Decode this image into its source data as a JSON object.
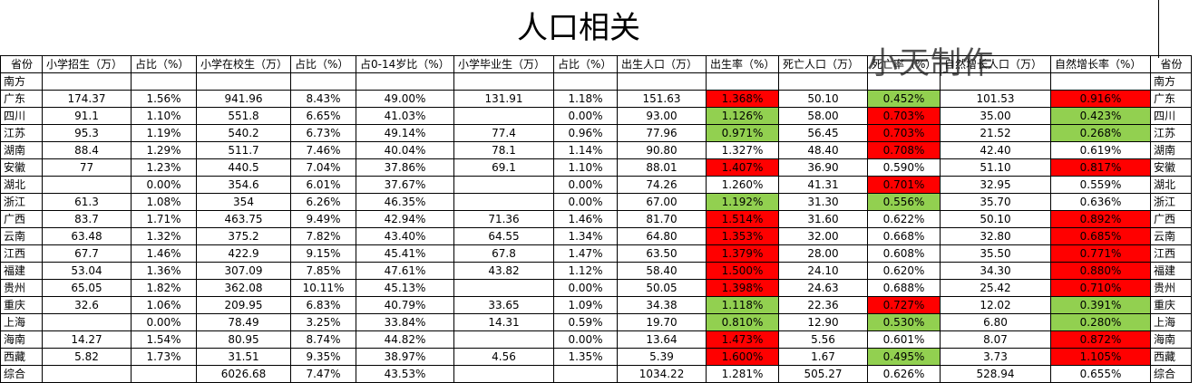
{
  "title": "人口相关",
  "watermark": "小天制作",
  "headers": [
    "省份",
    "小学招生（万）",
    "占比（%）",
    "小学在校生（万）",
    "占比（%）",
    "占0-14岁比（%）",
    "小学毕业生（万）",
    "占比（%）",
    "出生人口（万）",
    "出生率（%）",
    "死亡人口（万）",
    "死亡率（%）",
    "自然增长人口（万）",
    "自然增长率（%）",
    "省份"
  ],
  "rows": [
    {
      "cells": [
        "南方",
        "",
        "",
        "",
        "",
        "",
        "",
        "",
        "",
        "",
        "",
        "",
        "",
        "",
        "南方"
      ],
      "hl": [
        null,
        null
      ]
    },
    {
      "cells": [
        "广东",
        "174.37",
        "1.56%",
        "941.96",
        "8.43%",
        "49.00%",
        "131.91",
        "1.18%",
        "151.63",
        "1.368%",
        "50.10",
        "0.452%",
        "101.53",
        "0.916%",
        "广东"
      ],
      "hl": [
        "red",
        "green",
        "red"
      ]
    },
    {
      "cells": [
        "四川",
        "91.1",
        "1.10%",
        "551.8",
        "6.65%",
        "41.03%",
        "",
        "0.00%",
        "93.00",
        "1.126%",
        "58.00",
        "0.703%",
        "35.00",
        "0.423%",
        "四川"
      ],
      "hl": [
        "green",
        "red",
        "green"
      ]
    },
    {
      "cells": [
        "江苏",
        "95.3",
        "1.19%",
        "540.2",
        "6.73%",
        "49.14%",
        "77.4",
        "0.96%",
        "77.96",
        "0.971%",
        "56.45",
        "0.703%",
        "21.52",
        "0.268%",
        "江苏"
      ],
      "hl": [
        "green",
        "red",
        "green"
      ]
    },
    {
      "cells": [
        "湖南",
        "88.4",
        "1.29%",
        "511.7",
        "7.46%",
        "40.04%",
        "78.1",
        "1.14%",
        "90.80",
        "1.327%",
        "48.40",
        "0.708%",
        "42.40",
        "0.619%",
        "湖南"
      ],
      "hl": [
        null,
        "red",
        null
      ]
    },
    {
      "cells": [
        "安徽",
        "77",
        "1.23%",
        "440.5",
        "7.04%",
        "37.86%",
        "69.1",
        "1.10%",
        "88.01",
        "1.407%",
        "36.90",
        "0.590%",
        "51.10",
        "0.817%",
        "安徽"
      ],
      "hl": [
        "red",
        null,
        "red"
      ]
    },
    {
      "cells": [
        "湖北",
        "",
        "0.00%",
        "354.6",
        "6.01%",
        "37.67%",
        "",
        "0.00%",
        "74.26",
        "1.260%",
        "41.31",
        "0.701%",
        "32.95",
        "0.559%",
        "湖北"
      ],
      "hl": [
        null,
        "red",
        null
      ]
    },
    {
      "cells": [
        "浙江",
        "61.3",
        "1.08%",
        "354",
        "6.26%",
        "46.35%",
        "",
        "0.00%",
        "67.00",
        "1.192%",
        "31.30",
        "0.556%",
        "35.70",
        "0.636%",
        "浙江"
      ],
      "hl": [
        "green",
        "green",
        null
      ]
    },
    {
      "cells": [
        "广西",
        "83.7",
        "1.71%",
        "463.75",
        "9.49%",
        "42.94%",
        "71.36",
        "1.46%",
        "81.70",
        "1.514%",
        "31.60",
        "0.622%",
        "50.10",
        "0.892%",
        "广西"
      ],
      "hl": [
        "red",
        null,
        "red"
      ]
    },
    {
      "cells": [
        "云南",
        "63.48",
        "1.32%",
        "375.2",
        "7.82%",
        "43.40%",
        "64.55",
        "1.34%",
        "64.80",
        "1.353%",
        "32.00",
        "0.668%",
        "32.80",
        "0.685%",
        "云南"
      ],
      "hl": [
        "red",
        null,
        "red"
      ]
    },
    {
      "cells": [
        "江西",
        "67.7",
        "1.46%",
        "422.9",
        "9.15%",
        "45.41%",
        "67.8",
        "1.47%",
        "63.50",
        "1.379%",
        "28.00",
        "0.608%",
        "35.50",
        "0.771%",
        "江西"
      ],
      "hl": [
        "red",
        null,
        "red"
      ]
    },
    {
      "cells": [
        "福建",
        "53.04",
        "1.36%",
        "307.09",
        "7.85%",
        "47.61%",
        "43.82",
        "1.12%",
        "58.40",
        "1.500%",
        "24.10",
        "0.620%",
        "34.30",
        "0.880%",
        "福建"
      ],
      "hl": [
        "red",
        null,
        "red"
      ]
    },
    {
      "cells": [
        "贵州",
        "65.05",
        "1.82%",
        "362.08",
        "10.11%",
        "45.13%",
        "",
        "0.00%",
        "50.05",
        "1.398%",
        "24.63",
        "0.688%",
        "25.42",
        "0.710%",
        "贵州"
      ],
      "hl": [
        "red",
        null,
        "red"
      ]
    },
    {
      "cells": [
        "重庆",
        "32.6",
        "1.06%",
        "209.95",
        "6.83%",
        "40.79%",
        "33.65",
        "1.09%",
        "34.38",
        "1.118%",
        "22.36",
        "0.727%",
        "12.02",
        "0.391%",
        "重庆"
      ],
      "hl": [
        "green",
        "red",
        "green"
      ]
    },
    {
      "cells": [
        "上海",
        "",
        "0.00%",
        "78.49",
        "3.25%",
        "33.84%",
        "14.31",
        "0.59%",
        "19.70",
        "0.810%",
        "12.90",
        "0.530%",
        "6.80",
        "0.280%",
        "上海"
      ],
      "hl": [
        "green",
        "green",
        "green"
      ]
    },
    {
      "cells": [
        "海南",
        "14.27",
        "1.54%",
        "80.95",
        "8.74%",
        "44.82%",
        "",
        "0.00%",
        "13.64",
        "1.473%",
        "5.56",
        "0.601%",
        "8.07",
        "0.872%",
        "海南"
      ],
      "hl": [
        "red",
        null,
        "red"
      ]
    },
    {
      "cells": [
        "西藏",
        "5.82",
        "1.73%",
        "31.51",
        "9.35%",
        "38.97%",
        "4.56",
        "1.35%",
        "5.39",
        "1.600%",
        "1.67",
        "0.495%",
        "3.73",
        "1.105%",
        "西藏"
      ],
      "hl": [
        "red",
        "green",
        "red"
      ]
    },
    {
      "cells": [
        "综合",
        "",
        "",
        "6026.68",
        "7.47%",
        "43.53%",
        "",
        "",
        "1034.22",
        "1.281%",
        "505.27",
        "0.626%",
        "528.94",
        "0.655%",
        "综合"
      ],
      "hl": [
        null,
        null,
        null
      ]
    }
  ]
}
